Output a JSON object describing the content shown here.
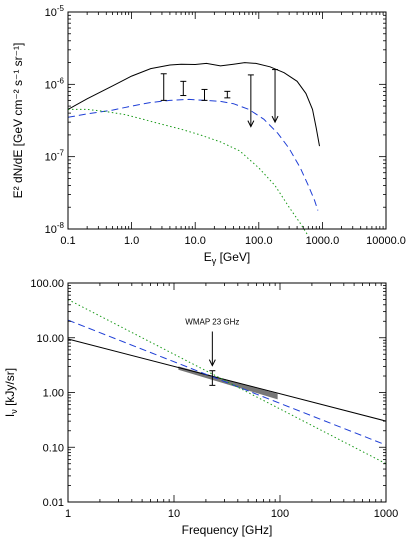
{
  "chart_data": [
    {
      "type": "line",
      "xlabel_base": "E",
      "xlabel_sub": "γ",
      "xlabel_unit": " [GeV]",
      "ylabel_text": "E² dN/dE  [GeV cm⁻² s⁻¹ sr⁻¹]",
      "x_scale": "log",
      "y_scale": "log",
      "xlim": [
        0.1,
        10000
      ],
      "ylim": [
        1e-08,
        1e-05
      ],
      "x_ticks": [
        0.1,
        1,
        10,
        100,
        1000,
        10000
      ],
      "x_tick_labels": [
        "0.1",
        "1.0",
        "10.0",
        "100.0",
        "1000.0",
        "10000.0"
      ],
      "y_ticks": [
        1e-08,
        1e-07,
        1e-06,
        1e-05
      ],
      "y_tick_labels": [
        {
          "base": "10",
          "exp": "-8"
        },
        {
          "base": "10",
          "exp": "-7"
        },
        {
          "base": "10",
          "exp": "-6"
        },
        {
          "base": "10",
          "exp": "-5"
        }
      ],
      "series": [
        {
          "style": "solid",
          "color": "#000000",
          "x": [
            0.1,
            0.2,
            0.5,
            1,
            2,
            4,
            6,
            10,
            15,
            25,
            40,
            60,
            90,
            150,
            250,
            400,
            550,
            700,
            800,
            900
          ],
          "y": [
            4.5e-07,
            6.3e-07,
            9.5e-07,
            1.3e-06,
            1.65e-06,
            1.85e-06,
            1.9e-06,
            1.88e-06,
            1.95e-06,
            1.8e-06,
            1.9e-06,
            2e-06,
            1.95e-06,
            1.75e-06,
            1.45e-06,
            1.1e-06,
            7.5e-07,
            4.5e-07,
            2.5e-07,
            1.4e-07
          ]
        },
        {
          "style": "dashed",
          "color": "#1f3fd6",
          "x": [
            0.1,
            0.2,
            0.5,
            1,
            2,
            4,
            8,
            15,
            25,
            40,
            70,
            120,
            200,
            300,
            450,
            600,
            750,
            850
          ],
          "y": [
            3.5e-07,
            3.9e-07,
            4.4e-07,
            5e-07,
            5.6e-07,
            6e-07,
            6.2e-07,
            6e-07,
            5.8e-07,
            5.4e-07,
            4.5e-07,
            3.3e-07,
            2.1e-07,
            1.3e-07,
            7e-08,
            4e-08,
            2.5e-08,
            1.8e-08
          ]
        },
        {
          "style": "dotted",
          "color": "#1a9a1a",
          "x": [
            0.1,
            0.2,
            0.4,
            0.8,
            1.5,
            3,
            6,
            12,
            25,
            50,
            100,
            180,
            300,
            450,
            600
          ],
          "y": [
            4.5e-07,
            4.5e-07,
            4.2e-07,
            3.8e-07,
            3.3e-07,
            2.8e-07,
            2.4e-07,
            2e-07,
            1.6e-07,
            1.2e-07,
            7e-08,
            4e-08,
            2e-08,
            1.2e-08,
            8e-09
          ]
        }
      ],
      "error_bars": [
        {
          "x": 3.2,
          "low": 6e-07,
          "high": 1.4e-06
        },
        {
          "x": 6.5,
          "low": 7e-07,
          "high": 1.1e-06
        },
        {
          "x": 14,
          "low": 6e-07,
          "high": 8.5e-07
        },
        {
          "x": 32,
          "low": 6.5e-07,
          "high": 8e-07
        }
      ],
      "upper_limits": [
        {
          "x": 75,
          "high": 1.35e-06,
          "low": 2.6e-07
        },
        {
          "x": 180,
          "high": 1.6e-06,
          "low": 3e-07
        }
      ]
    },
    {
      "type": "line",
      "xlabel_text": "Frequency [GHz]",
      "ylabel_base": "I",
      "ylabel_sub": "ν",
      "ylabel_unit": " [kJy/sr]",
      "x_scale": "log",
      "y_scale": "log",
      "xlim": [
        1,
        1000
      ],
      "ylim": [
        0.01,
        100
      ],
      "x_ticks": [
        1,
        10,
        100,
        1000
      ],
      "x_tick_labels": [
        "1",
        "10",
        "100",
        "1000"
      ],
      "y_ticks": [
        0.01,
        0.1,
        1,
        10,
        100
      ],
      "y_tick_labels": [
        "0.01",
        "0.10",
        "1.00",
        "10.00",
        "100.00"
      ],
      "series": [
        {
          "style": "solid",
          "color": "#000000",
          "x": [
            1,
            1000
          ],
          "y": [
            9.5,
            0.3
          ]
        },
        {
          "style": "dashed",
          "color": "#1f3fd6",
          "x": [
            1,
            1000
          ],
          "y": [
            21,
            0.11
          ]
        },
        {
          "style": "dotted",
          "color": "#1a9a1a",
          "x": [
            1,
            1000
          ],
          "y": [
            50,
            0.05
          ]
        }
      ],
      "band": {
        "x": [
          11,
          95
        ],
        "upper": [
          3.0,
          0.95
        ],
        "lower": [
          2.6,
          0.75
        ],
        "color": "#777777"
      },
      "error_bars": [
        {
          "x": 23,
          "low": 1.35,
          "high": 2.5
        }
      ],
      "annotation": {
        "text": "WMAP 23 GHz",
        "x": 23,
        "arrow_from": 13,
        "arrow_to": 3.1
      }
    }
  ]
}
